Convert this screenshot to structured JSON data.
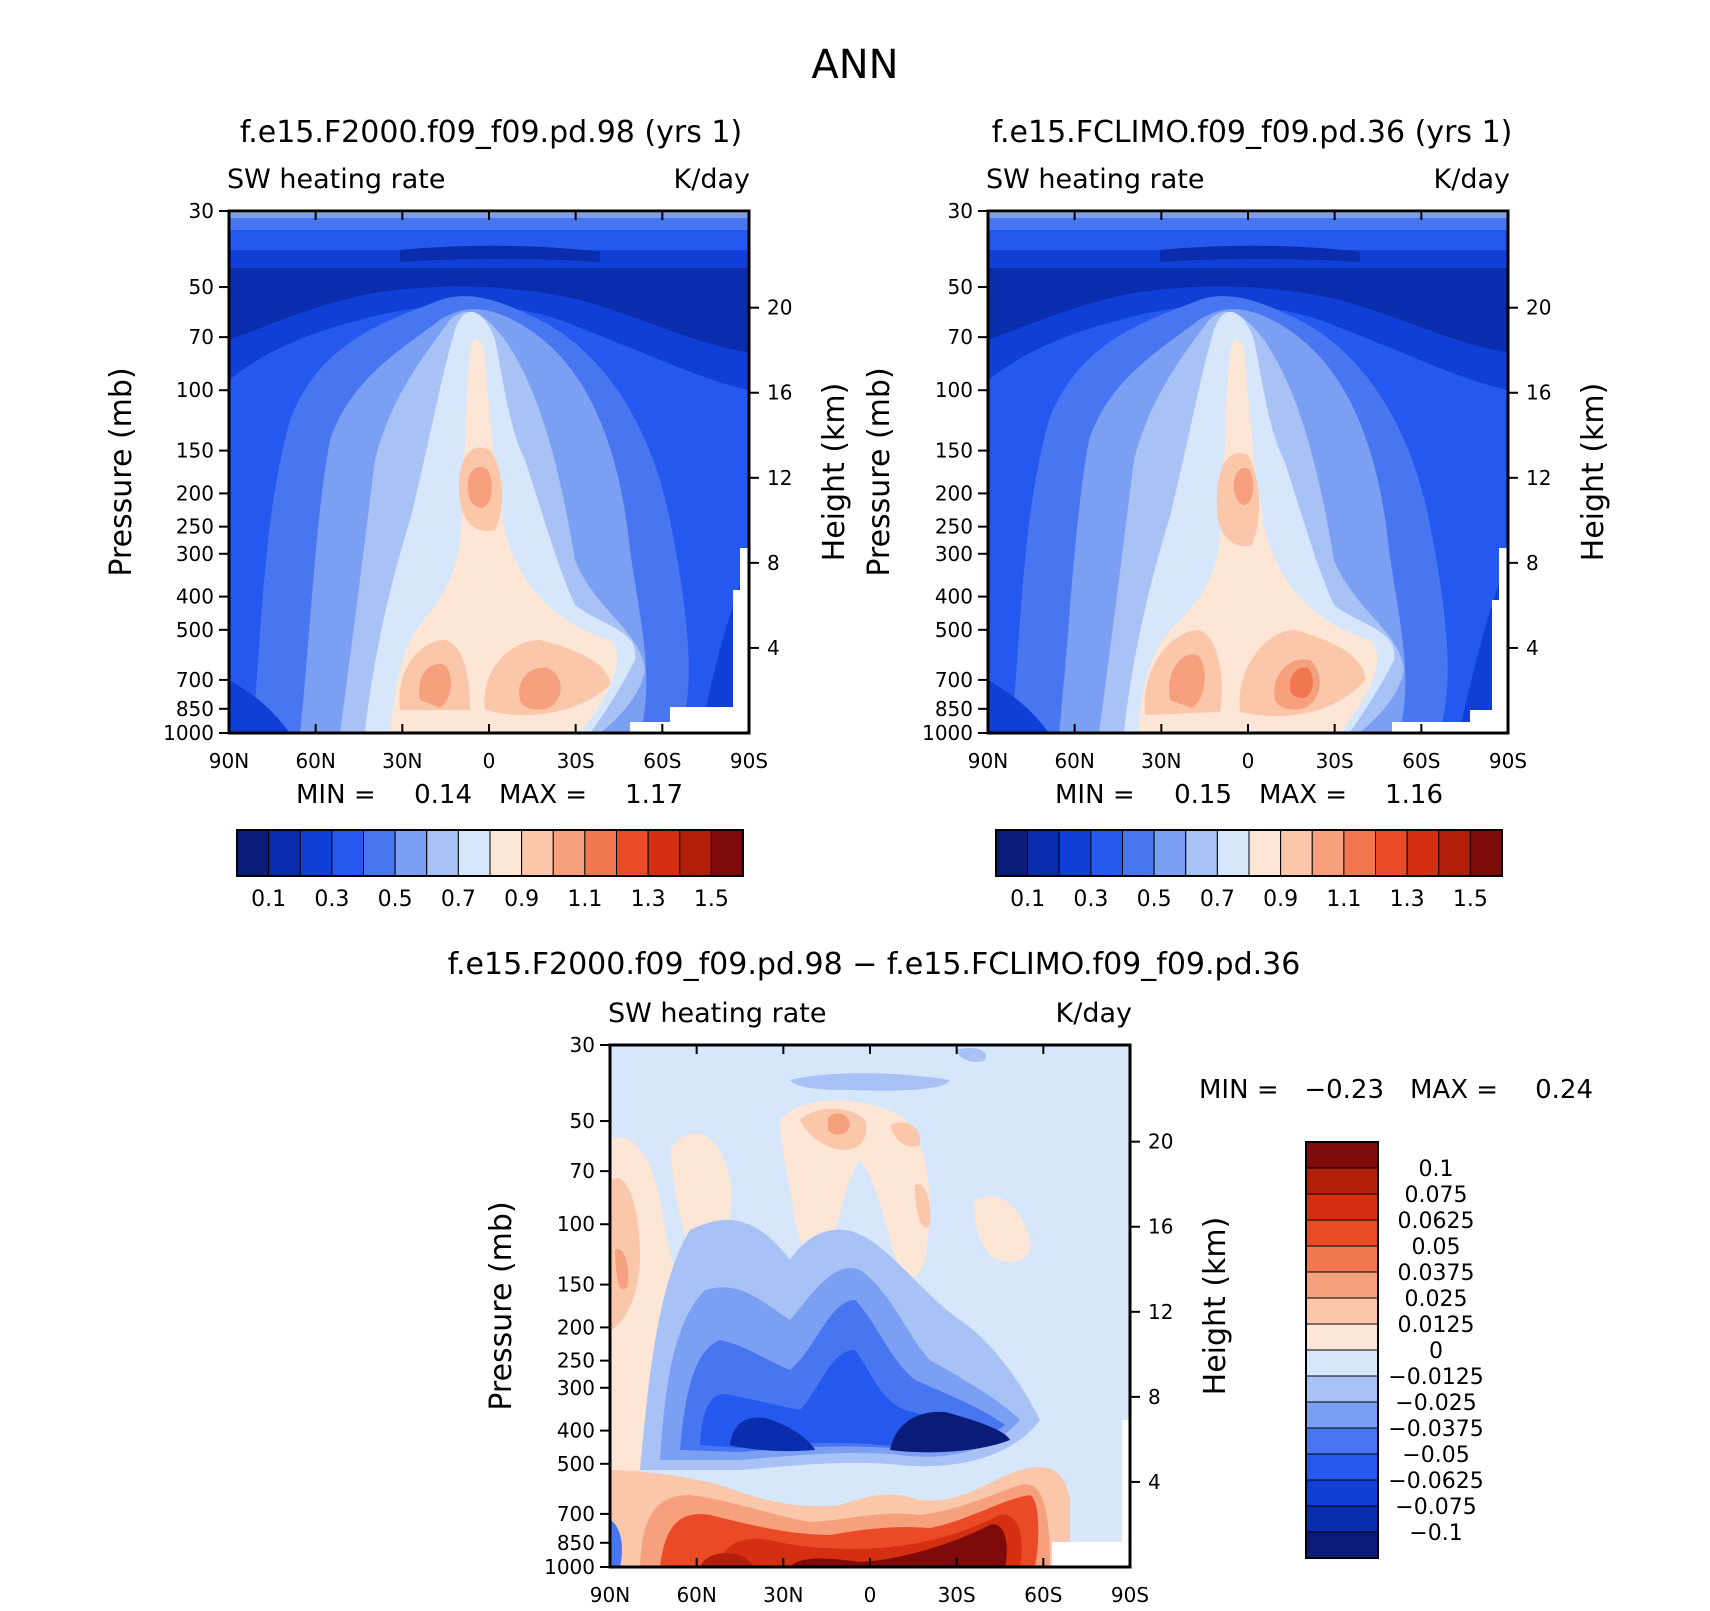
{
  "figure": {
    "title": "ANN"
  },
  "chart_data": [
    {
      "type": "heatmap",
      "title": "f.e15.F2000.f09_f09.pd.98 (yrs 1)",
      "left_subtitle": "SW heating rate",
      "right_subtitle": "K/day",
      "xlabel": "",
      "ylabel": "Pressure (mb)",
      "ylabel_right": "Height (km)",
      "x_ticks": [
        "90N",
        "60N",
        "30N",
        "0",
        "30S",
        "60S",
        "90S"
      ],
      "y_ticks": [
        "30",
        "50",
        "70",
        "100",
        "150",
        "200",
        "250",
        "300",
        "400",
        "500",
        "700",
        "850",
        "1000"
      ],
      "y_ticks_right": [
        "20",
        "16",
        "12",
        "8",
        "4"
      ],
      "ylim": [
        1000,
        30
      ],
      "min_label": "MIN =",
      "min_value": "0.14",
      "max_label": "MAX =",
      "max_value": "1.17",
      "colorbar": {
        "orientation": "horizontal",
        "levels": [
          0.1,
          0.2,
          0.3,
          0.4,
          0.5,
          0.6,
          0.7,
          0.8,
          0.9,
          1.0,
          1.1,
          1.2,
          1.3,
          1.4,
          1.5
        ],
        "labels": [
          "0.1",
          "0.3",
          "0.5",
          "0.7",
          "0.9",
          "1.1",
          "1.3",
          "1.5"
        ]
      }
    },
    {
      "type": "heatmap",
      "title": "f.e15.FCLIMO.f09_f09.pd.36 (yrs 1)",
      "left_subtitle": "SW heating rate",
      "right_subtitle": "K/day",
      "xlabel": "",
      "ylabel": "Pressure (mb)",
      "ylabel_right": "Height (km)",
      "x_ticks": [
        "90N",
        "60N",
        "30N",
        "0",
        "30S",
        "60S",
        "90S"
      ],
      "y_ticks": [
        "30",
        "50",
        "70",
        "100",
        "150",
        "200",
        "250",
        "300",
        "400",
        "500",
        "700",
        "850",
        "1000"
      ],
      "y_ticks_right": [
        "20",
        "16",
        "12",
        "8",
        "4"
      ],
      "ylim": [
        1000,
        30
      ],
      "min_label": "MIN =",
      "min_value": "0.15",
      "max_label": "MAX =",
      "max_value": "1.16",
      "colorbar": {
        "orientation": "horizontal",
        "levels": [
          0.1,
          0.2,
          0.3,
          0.4,
          0.5,
          0.6,
          0.7,
          0.8,
          0.9,
          1.0,
          1.1,
          1.2,
          1.3,
          1.4,
          1.5
        ],
        "labels": [
          "0.1",
          "0.3",
          "0.5",
          "0.7",
          "0.9",
          "1.1",
          "1.3",
          "1.5"
        ]
      }
    },
    {
      "type": "heatmap",
      "title": "f.e15.F2000.f09_f09.pd.98 − f.e15.FCLIMO.f09_f09.pd.36",
      "left_subtitle": "SW heating rate",
      "right_subtitle": "K/day",
      "xlabel": "",
      "ylabel": "Pressure (mb)",
      "ylabel_right": "Height (km)",
      "x_ticks": [
        "90N",
        "60N",
        "30N",
        "0",
        "30S",
        "60S",
        "90S"
      ],
      "y_ticks": [
        "30",
        "50",
        "70",
        "100",
        "150",
        "200",
        "250",
        "300",
        "400",
        "500",
        "700",
        "850",
        "1000"
      ],
      "y_ticks_right": [
        "20",
        "16",
        "12",
        "8",
        "4"
      ],
      "ylim": [
        1000,
        30
      ],
      "min_label": "MIN =",
      "min_value": "−0.23",
      "max_label": "MAX =",
      "max_value": "0.24",
      "colorbar": {
        "orientation": "vertical",
        "labels": [
          "0.1",
          "0.075",
          "0.0625",
          "0.05",
          "0.0375",
          "0.025",
          "0.0125",
          "0",
          "−0.0125",
          "−0.025",
          "−0.0375",
          "−0.05",
          "−0.0625",
          "−0.075",
          "−0.1"
        ]
      }
    }
  ],
  "colors": {
    "seq_palette": [
      "#0a1c78",
      "#0a2dad",
      "#0f3fd6",
      "#2458ee",
      "#4876f0",
      "#7b9ff3",
      "#a8c2f6",
      "#d6e6fb",
      "#fde6d6",
      "#fbc7ab",
      "#f7a07d",
      "#f2764f",
      "#ea4a26",
      "#d42f10",
      "#b21e0a",
      "#7e0a0a"
    ],
    "diff_palette": [
      "#0a1c78",
      "#0a2dad",
      "#0f3fd6",
      "#2458ee",
      "#4876f0",
      "#7b9ff3",
      "#a8c2f6",
      "#d6e6fb",
      "#fde6d6",
      "#fbc7ab",
      "#f7a07d",
      "#f2764f",
      "#ea4a26",
      "#d42f10",
      "#b21e0a",
      "#7e0a0a"
    ]
  }
}
